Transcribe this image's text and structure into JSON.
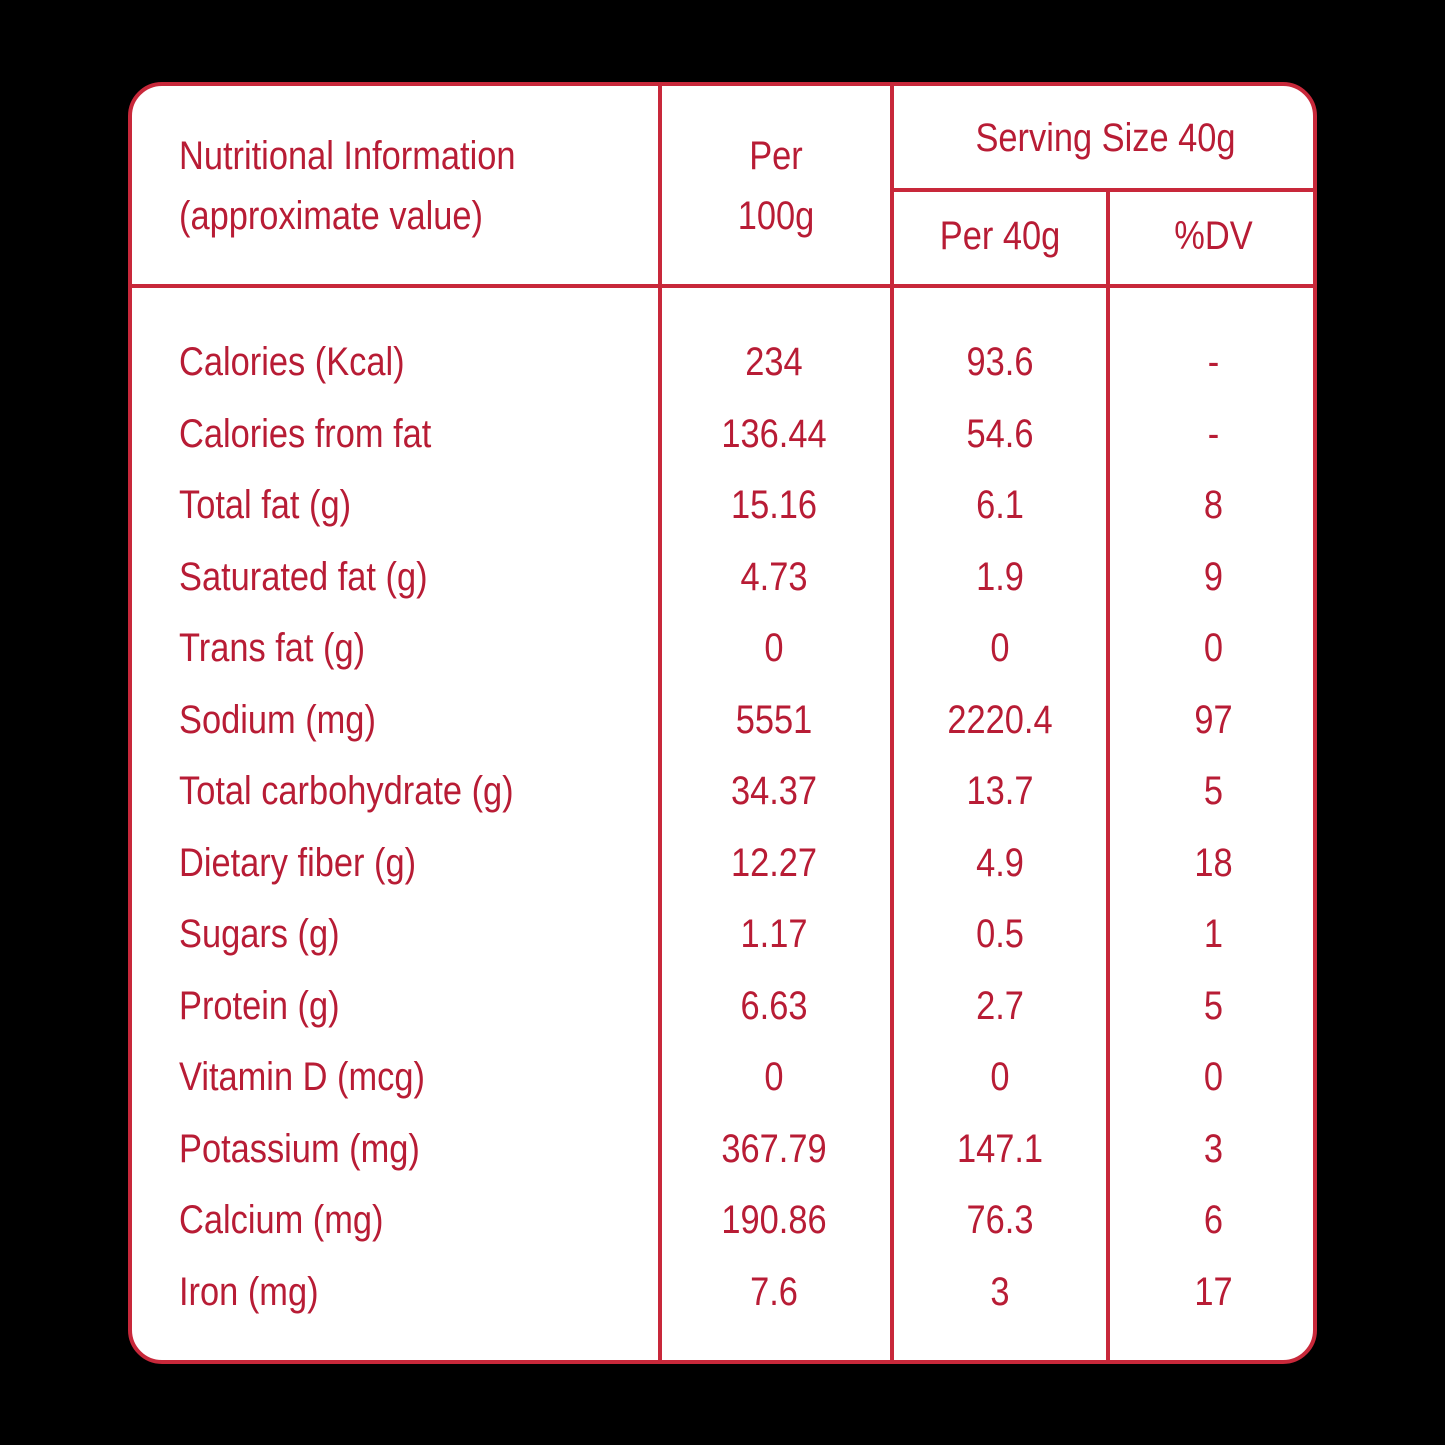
{
  "colors": {
    "background": "#000000",
    "panel": "#ffffff",
    "accent": "#c8283a",
    "text": "#b81c35"
  },
  "header": {
    "title_line1": "Nutritional Information",
    "title_line2": "(approximate value)",
    "per100_line1": "Per",
    "per100_line2": "100g",
    "serving_size": "Serving Size 40g",
    "per40": "Per 40g",
    "dv": "%DV"
  },
  "rows": [
    {
      "name": "Calories (Kcal)",
      "per100": "234",
      "per40": "93.6",
      "dv": "-"
    },
    {
      "name": "Calories from fat",
      "per100": "136.44",
      "per40": "54.6",
      "dv": "-"
    },
    {
      "name": "Total fat (g)",
      "per100": "15.16",
      "per40": "6.1",
      "dv": "8"
    },
    {
      "name": "Saturated fat (g)",
      "per100": "4.73",
      "per40": "1.9",
      "dv": "9"
    },
    {
      "name": "Trans fat (g)",
      "per100": "0",
      "per40": "0",
      "dv": "0"
    },
    {
      "name": "Sodium (mg)",
      "per100": "5551",
      "per40": "2220.4",
      "dv": "97"
    },
    {
      "name": "Total carbohydrate (g)",
      "per100": "34.37",
      "per40": "13.7",
      "dv": "5"
    },
    {
      "name": "Dietary fiber (g)",
      "per100": "12.27",
      "per40": "4.9",
      "dv": "18"
    },
    {
      "name": "Sugars (g)",
      "per100": "1.17",
      "per40": "0.5",
      "dv": "1"
    },
    {
      "name": "Protein (g)",
      "per100": "6.63",
      "per40": "2.7",
      "dv": "5"
    },
    {
      "name": "Vitamin D (mcg)",
      "per100": "0",
      "per40": "0",
      "dv": "0"
    },
    {
      "name": "Potassium (mg)",
      "per100": "367.79",
      "per40": "147.1",
      "dv": "3"
    },
    {
      "name": "Calcium (mg)",
      "per100": "190.86",
      "per40": "76.3",
      "dv": "6"
    },
    {
      "name": "Iron (mg)",
      "per100": "7.6",
      "per40": "3",
      "dv": "17"
    }
  ]
}
